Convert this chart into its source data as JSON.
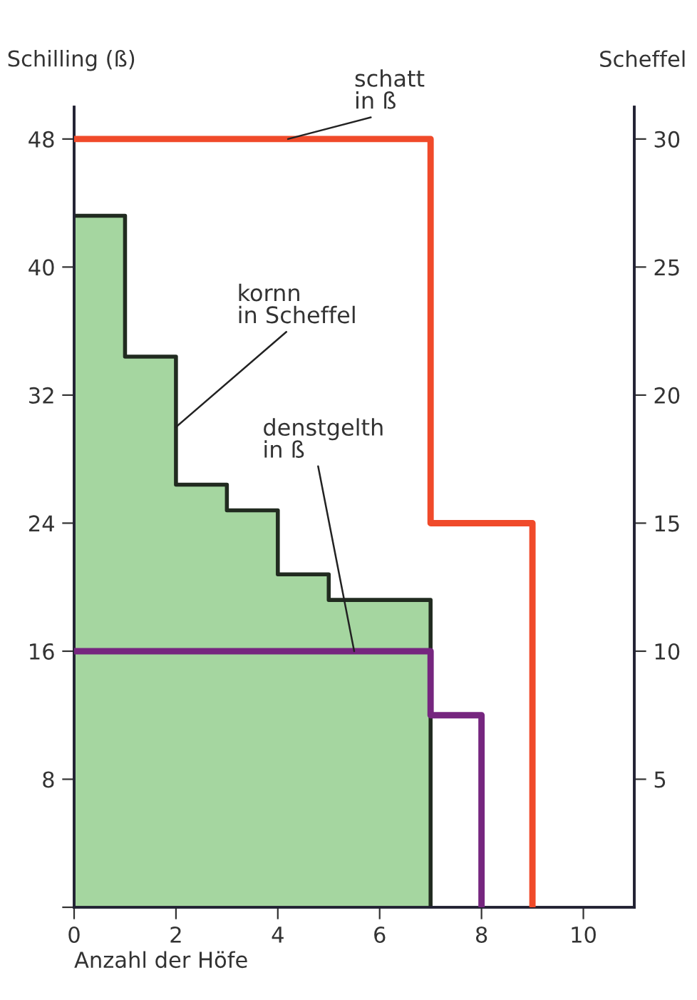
{
  "chart_data": {
    "type": "step",
    "xlabel": "Anzahl der Höfe",
    "ylabel": "Schilling (ß)",
    "y2label": "Scheffel",
    "xlim": [
      0,
      11
    ],
    "xticks": [
      0,
      2,
      4,
      6,
      8,
      10
    ],
    "ylim": [
      0,
      50
    ],
    "yticks": [
      {
        "value": 0,
        "label": null
      },
      8,
      16,
      24,
      32,
      40,
      48
    ],
    "y2lim": [
      0,
      31.25
    ],
    "y2ticks": [
      5,
      10,
      15,
      20,
      25,
      30
    ],
    "grid": false,
    "legend": false,
    "series": [
      {
        "type": "area",
        "axis": "y2",
        "color": "#a5d6a0",
        "x": [
          0,
          1,
          2,
          3,
          4,
          5,
          7
        ],
        "values": [
          27,
          21.5,
          16.5,
          15.5,
          13,
          12,
          0
        ]
      },
      {
        "color": "#f04a2a",
        "x": [
          0,
          7,
          9
        ],
        "values": [
          48,
          24,
          0
        ]
      },
      {
        "color": "#76267f",
        "x": [
          0,
          7,
          8
        ],
        "values": [
          16,
          12,
          0
        ]
      }
    ],
    "annotations": [
      {
        "text": "schatt\nin ß",
        "x": 4.2,
        "y": 48
      },
      {
        "text": "kornn\nin Scheffel",
        "x": 2,
        "y": 30
      },
      {
        "text": "denstgelth\nin ß",
        "x": 5.5,
        "y": 16
      }
    ]
  }
}
